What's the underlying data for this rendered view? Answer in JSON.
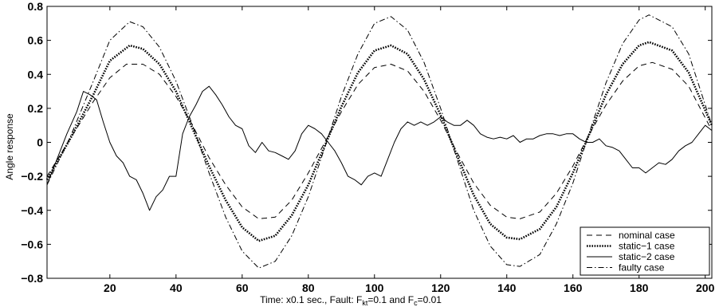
{
  "chart_data": {
    "type": "line",
    "title": "",
    "xlabel": {
      "main": "Time: x0.1 sec., Fault:  F",
      "sub1": "kt",
      "mid": "=0.1 and F",
      "sub2": "c",
      "end": "=0.01"
    },
    "ylabel": "Angle response",
    "xlim": [
      1,
      202
    ],
    "ylim": [
      -0.8,
      0.8
    ],
    "xticks": [
      20,
      40,
      60,
      80,
      100,
      120,
      140,
      160,
      180,
      200
    ],
    "xtick_labels": [
      "20",
      "40",
      "60",
      "80",
      "100",
      "120",
      "140",
      "160",
      "180",
      "200"
    ],
    "yticks": [
      -0.8,
      -0.6,
      -0.4,
      -0.2,
      0,
      0.2,
      0.4,
      0.6,
      0.8
    ],
    "ytick_labels": [
      "−0.8",
      "−0.6",
      "−0.4",
      "−0.2",
      "0",
      "0.2",
      "0.4",
      "0.6",
      "0.8"
    ],
    "grid": false,
    "legend_position": "bottom-right",
    "series": [
      {
        "name": "nominal case",
        "style": "dashed",
        "color": "#000000",
        "x": [
          1,
          8,
          15,
          20,
          25,
          30,
          35,
          40,
          45,
          50,
          55,
          60,
          65,
          70,
          75,
          80,
          85,
          90,
          95,
          100,
          105,
          110,
          115,
          120,
          125,
          130,
          135,
          140,
          144,
          150,
          155,
          160,
          165,
          170,
          175,
          180,
          184,
          190,
          195,
          202
        ],
        "y": [
          -0.2,
          0.02,
          0.24,
          0.38,
          0.46,
          0.46,
          0.4,
          0.27,
          0.1,
          -0.09,
          -0.25,
          -0.38,
          -0.45,
          -0.44,
          -0.34,
          -0.18,
          0.0,
          0.18,
          0.34,
          0.44,
          0.46,
          0.42,
          0.3,
          0.13,
          -0.06,
          -0.24,
          -0.37,
          -0.44,
          -0.45,
          -0.41,
          -0.3,
          -0.14,
          0.05,
          0.22,
          0.36,
          0.45,
          0.47,
          0.43,
          0.33,
          0.07
        ]
      },
      {
        "name": "static−1 case",
        "style": "dotted",
        "color": "#000000",
        "x": [
          1,
          8,
          15,
          20,
          26,
          30,
          35,
          40,
          45,
          50,
          55,
          60,
          65,
          70,
          75,
          80,
          85,
          90,
          95,
          100,
          105,
          110,
          115,
          120,
          125,
          130,
          135,
          140,
          144,
          150,
          155,
          160,
          165,
          170,
          175,
          180,
          183,
          190,
          195,
          202
        ],
        "y": [
          -0.22,
          0.02,
          0.28,
          0.48,
          0.57,
          0.55,
          0.46,
          0.3,
          0.08,
          -0.14,
          -0.34,
          -0.5,
          -0.58,
          -0.55,
          -0.43,
          -0.25,
          -0.02,
          0.21,
          0.41,
          0.54,
          0.57,
          0.52,
          0.37,
          0.16,
          -0.08,
          -0.31,
          -0.48,
          -0.56,
          -0.57,
          -0.51,
          -0.38,
          -0.18,
          0.05,
          0.28,
          0.46,
          0.57,
          0.59,
          0.54,
          0.41,
          0.1
        ]
      },
      {
        "name": "static−2 case",
        "style": "solid",
        "color": "#000000",
        "x": [
          1,
          4,
          7,
          10,
          12,
          14,
          16,
          18,
          20,
          22,
          24,
          26,
          28,
          30,
          32,
          34,
          36,
          38,
          40,
          42,
          44,
          46,
          48,
          50,
          52,
          54,
          56,
          58,
          60,
          62,
          64,
          66,
          68,
          70,
          72,
          74,
          76,
          78,
          80,
          82,
          84,
          86,
          88,
          90,
          92,
          94,
          96,
          98,
          100,
          102,
          104,
          106,
          108,
          110,
          112,
          114,
          116,
          118,
          120,
          122,
          124,
          126,
          128,
          130,
          132,
          134,
          136,
          138,
          140,
          142,
          144,
          146,
          148,
          150,
          152,
          154,
          156,
          158,
          160,
          162,
          164,
          166,
          168,
          170,
          172,
          174,
          176,
          178,
          180,
          182,
          184,
          186,
          188,
          190,
          192,
          194,
          196,
          198,
          200,
          202
        ],
        "y": [
          -0.25,
          -0.1,
          0.05,
          0.18,
          0.3,
          0.28,
          0.25,
          0.12,
          0.0,
          -0.08,
          -0.12,
          -0.2,
          -0.22,
          -0.3,
          -0.4,
          -0.32,
          -0.28,
          -0.2,
          -0.2,
          0.05,
          0.15,
          0.22,
          0.3,
          0.33,
          0.28,
          0.22,
          0.15,
          0.1,
          0.08,
          -0.02,
          -0.06,
          0.0,
          -0.05,
          -0.06,
          -0.08,
          -0.1,
          -0.05,
          0.05,
          0.1,
          0.08,
          0.05,
          0.0,
          -0.05,
          -0.12,
          -0.2,
          -0.22,
          -0.25,
          -0.2,
          -0.18,
          -0.2,
          -0.1,
          0.0,
          0.08,
          0.12,
          0.1,
          0.12,
          0.1,
          0.12,
          0.15,
          0.12,
          0.1,
          0.1,
          0.13,
          0.1,
          0.05,
          0.03,
          0.02,
          0.03,
          0.02,
          0.04,
          0.0,
          0.02,
          0.02,
          0.04,
          0.05,
          0.05,
          0.04,
          0.05,
          0.05,
          0.02,
          0.0,
          0.0,
          0.02,
          -0.02,
          -0.03,
          -0.05,
          -0.1,
          -0.15,
          -0.15,
          -0.18,
          -0.15,
          -0.12,
          -0.13,
          -0.1,
          -0.05,
          -0.02,
          0.0,
          0.05,
          0.1,
          0.07
        ]
      },
      {
        "name": "faulty case",
        "style": "dashdot",
        "color": "#000000",
        "x": [
          1,
          8,
          15,
          20,
          26,
          30,
          35,
          40,
          45,
          50,
          55,
          60,
          65,
          70,
          75,
          80,
          85,
          90,
          95,
          100,
          105,
          110,
          115,
          120,
          125,
          130,
          135,
          140,
          144,
          150,
          155,
          160,
          165,
          170,
          175,
          180,
          183,
          190,
          195,
          202
        ],
        "y": [
          -0.25,
          0.03,
          0.36,
          0.6,
          0.71,
          0.68,
          0.56,
          0.36,
          0.1,
          -0.18,
          -0.44,
          -0.64,
          -0.74,
          -0.7,
          -0.55,
          -0.32,
          -0.03,
          0.27,
          0.52,
          0.7,
          0.74,
          0.66,
          0.47,
          0.2,
          -0.1,
          -0.4,
          -0.61,
          -0.72,
          -0.73,
          -0.66,
          -0.48,
          -0.24,
          0.06,
          0.35,
          0.58,
          0.72,
          0.75,
          0.68,
          0.52,
          0.1
        ]
      }
    ]
  }
}
